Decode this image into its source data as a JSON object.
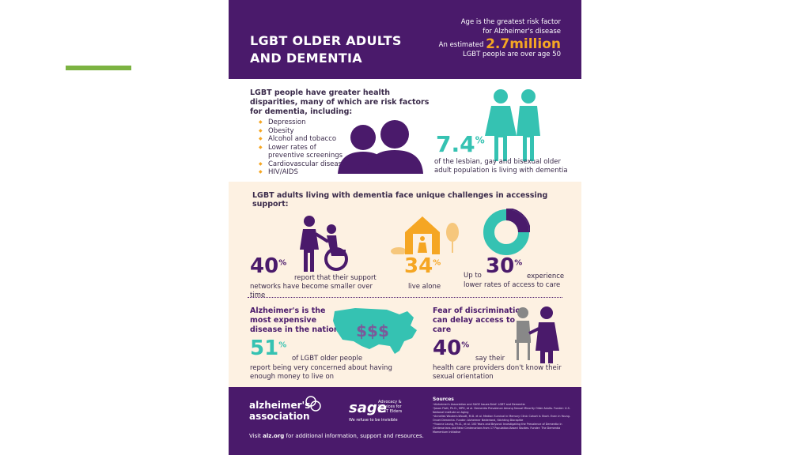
{
  "slide": {
    "accent_color": "#7cb342"
  },
  "header": {
    "title_line1": "LGBT OLDER ADULTS",
    "title_line2": "AND DEMENTIA",
    "risk_line1": "Age is the greatest risk factor",
    "risk_line2": "for Alzheimer's disease",
    "estimate_prefix": "An estimated",
    "estimate_value": "2.7million",
    "estimate_suffix": "LGBT people are over age 50"
  },
  "disparities": {
    "heading": "LGBT people have greater health disparities, many of which are risk factors for dementia, including:",
    "items": [
      "Depression",
      "Obesity",
      "Alcohol and tobacco",
      "Lower rates of preventive screenings",
      "Cardiovascular disease",
      "HIV/AIDS"
    ],
    "stat_value": "7.4",
    "stat_unit": "%",
    "stat_text": "of the lesbian, gay and bisexual older adult population is living with dementia"
  },
  "challenges": {
    "heading": "LGBT adults living with dementia face unique challenges in accessing support:",
    "networks_value": "40",
    "networks_unit": "%",
    "networks_text1": "report that their support",
    "networks_text2": "networks have become smaller over time",
    "alone_value": "34",
    "alone_unit": "%",
    "alone_text": "live alone",
    "access_prefix": "Up to",
    "access_value": "30",
    "access_unit": "%",
    "access_text1": "experience",
    "access_text2": "lower rates of access to care"
  },
  "cost": {
    "heading": "Alzheimer's is the most expensive disease in the nation",
    "map_symbols": "$$$",
    "value": "51",
    "unit": "%",
    "text1": "of LGBT older people",
    "text2": "report being very concerned about having enough money to live on"
  },
  "discrimination": {
    "heading": "Fear of discrimination can delay access to care",
    "value": "40",
    "unit": "%",
    "text1": "say their",
    "text2": "health care providers don't know their sexual orientation"
  },
  "footer": {
    "alz_line1": "alzheimer's",
    "alz_line2": "association",
    "sage_name": "sage",
    "sage_desc": "Advocacy & Services for LGBT Elders",
    "sage_tag": "We refuse to be invisible",
    "visit_prefix": "Visit",
    "visit_site": "alz.org",
    "visit_suffix": "for additional information, support and resources.",
    "sources_title": "Sources",
    "sources": [
      "Alzheimer's Association and SAGE Issues Brief: LGBT and Dementia",
      "Jason Flatt, Ph.D., MPH, et al. Dementia Prevalence Among Sexual Minority Older Adults. Funder: U.S. National Institute on Aging",
      "Annelies Wouters-Woudt, M.D. et al. Median Survival in Memory Clinic Cohort is Short. Even in Young-Onset Dementia. Funder: Alzheimer Nederland, Stichting Dioraphte",
      "Yvonne Leung, Ph.D., et al. 100 Years and Beyond: Investigating the Prevalence of Dementia in Centenarians and Near Centenarians from 17 Population-Based Studies. Funder: The Dementia Momentum Initiative"
    ],
    "colors": {
      "purple": "#4a1a6b",
      "teal": "#35c2b2",
      "orange": "#f5a623",
      "cream": "#fdf1e2"
    }
  }
}
